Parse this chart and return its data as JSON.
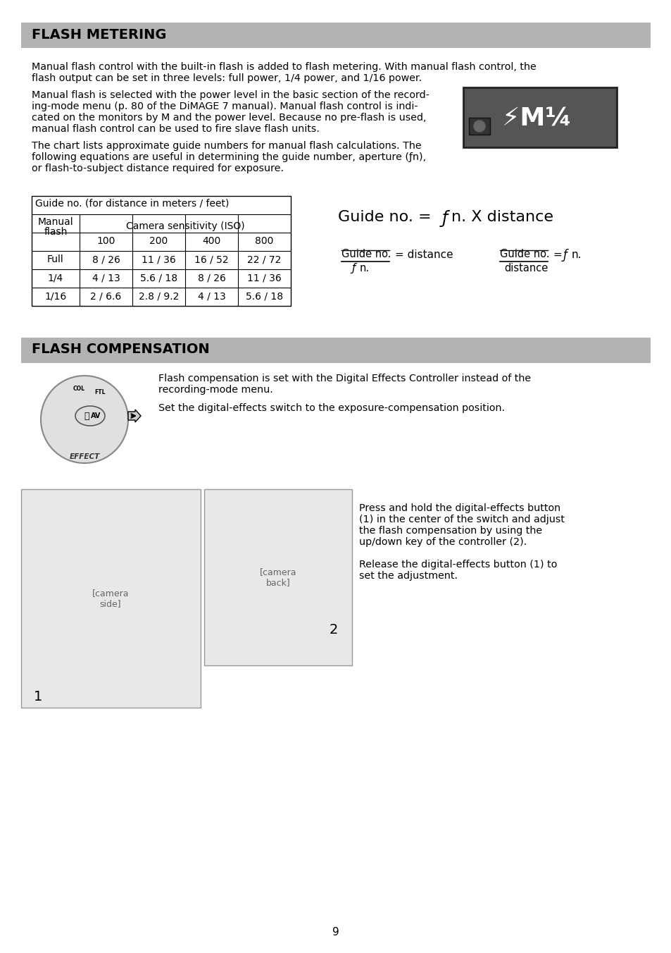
{
  "page_bg": "#ffffff",
  "page_number": "9",
  "section1_title": "FLASH METERING",
  "header_bg": "#b3b3b3",
  "para1_line1": "Manual flash control with the built-in flash is added to flash metering. With manual flash control, the",
  "para1_line2": "flash output can be set in three levels: full power, 1/4 power, and 1/16 power.",
  "para2_line1": "Manual flash is selected with the power level in the basic section of the record-",
  "para2_line2": "ing-mode menu (p. 80 of the DiMAGE 7 manual). Manual flash control is indi-",
  "para2_line3": "cated on the monitors by M and the power level. Because no pre-flash is used,",
  "para2_line4": "manual flash control can be used to fire slave flash units.",
  "para3_line1": "The chart lists approximate guide numbers for manual flash calculations. The",
  "para3_line2": "following equations are useful in determining the guide number, aperture (ƒn),",
  "para3_line3": "or flash-to-subject distance required for exposure.",
  "table_title": "Guide no. (for distance in meters / feet)",
  "table_iso": [
    "100",
    "200",
    "400",
    "800"
  ],
  "table_rows": [
    [
      "Full",
      "8 / 26",
      "11 / 36",
      "16 / 52",
      "22 / 72"
    ],
    [
      "1/4",
      "4 / 13",
      "5.6 / 18",
      "8 / 26",
      "11 / 36"
    ],
    [
      "1/16",
      "2 / 6.6",
      "2.8 / 9.2",
      "4 / 13",
      "5.6 / 18"
    ]
  ],
  "section2_title": "FLASH COMPENSATION",
  "fc_para1_line1": "Flash compensation is set with the Digital Effects Controller instead of the",
  "fc_para1_line2": "recording-mode menu.",
  "fc_para2": "Set the digital-effects switch to the exposure-compensation position.",
  "fc_para3_line1": "Press and hold the digital-effects button",
  "fc_para3_line2": "(1) in the center of the switch and adjust",
  "fc_para3_line3": "the flash compensation by using the",
  "fc_para3_line4": "up/down key of the controller (2).",
  "fc_para4_line1": "Release the digital-effects button (1) to",
  "fc_para4_line2": "set the adjustment.",
  "label1": "1",
  "label2": "2"
}
